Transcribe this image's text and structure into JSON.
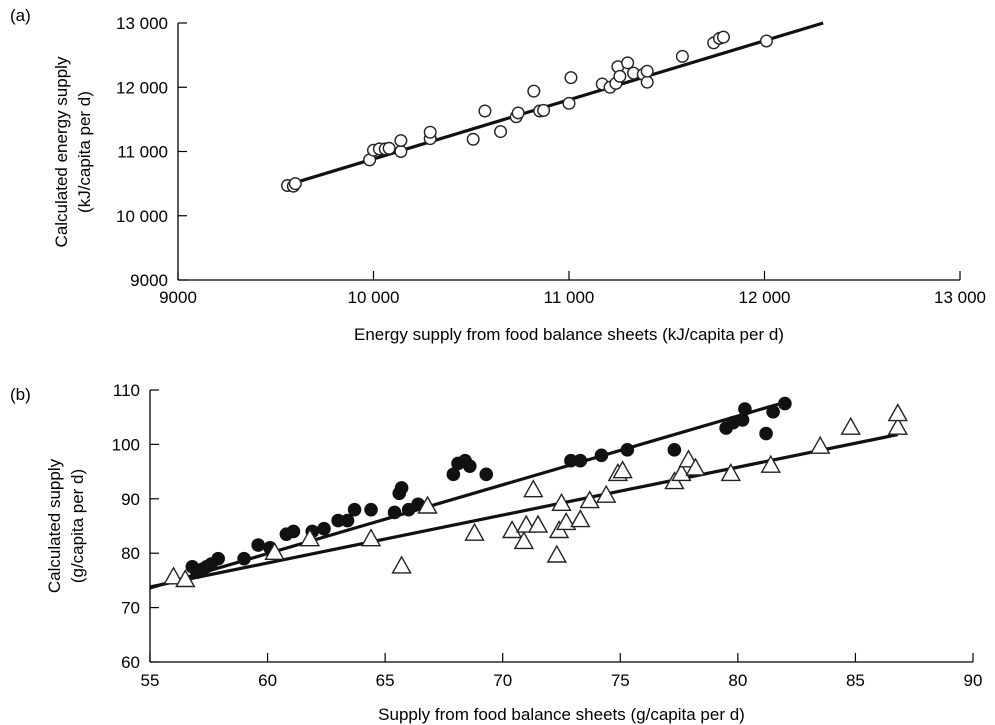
{
  "chart_data": [
    {
      "type": "scatter",
      "panel_label": "(a)",
      "xlabel": "Energy supply from food balance sheets (kJ/capita per d)",
      "ylabel_lines": [
        "Calculated energy supply",
        "(kJ/capita per d)"
      ],
      "xlim": [
        9000,
        13000
      ],
      "ylim": [
        9000,
        13000
      ],
      "x_ticks": [
        9000,
        10000,
        11000,
        12000,
        13000
      ],
      "x_tick_labels": [
        "9000",
        "10 000",
        "11 000",
        "12 000",
        "13 000"
      ],
      "y_ticks": [
        9000,
        10000,
        11000,
        12000,
        13000
      ],
      "y_tick_labels": [
        "9000",
        "10 000",
        "11 000",
        "12 000",
        "13 000"
      ],
      "grid": false,
      "series": [
        {
          "marker": "open-circle",
          "points": [
            [
              9560,
              10470
            ],
            [
              9590,
              10460
            ],
            [
              9600,
              10500
            ],
            [
              9980,
              10870
            ],
            [
              10000,
              11020
            ],
            [
              10030,
              11040
            ],
            [
              10060,
              11040
            ],
            [
              10080,
              11050
            ],
            [
              10140,
              11000
            ],
            [
              10140,
              11170
            ],
            [
              10290,
              11200
            ],
            [
              10290,
              11300
            ],
            [
              10510,
              11190
            ],
            [
              10570,
              11630
            ],
            [
              10650,
              11310
            ],
            [
              10730,
              11540
            ],
            [
              10740,
              11600
            ],
            [
              10820,
              11940
            ],
            [
              10850,
              11630
            ],
            [
              10870,
              11640
            ],
            [
              11000,
              11750
            ],
            [
              11010,
              12150
            ],
            [
              11170,
              12050
            ],
            [
              11210,
              12000
            ],
            [
              11240,
              12060
            ],
            [
              11250,
              12320
            ],
            [
              11260,
              12170
            ],
            [
              11300,
              12380
            ],
            [
              11330,
              12220
            ],
            [
              11380,
              12200
            ],
            [
              11400,
              12080
            ],
            [
              11400,
              12250
            ],
            [
              11580,
              12480
            ],
            [
              11740,
              12690
            ],
            [
              11770,
              12760
            ],
            [
              11790,
              12780
            ],
            [
              12010,
              12720
            ]
          ]
        }
      ],
      "fit_lines": [
        {
          "x": [
            9560,
            12300
          ],
          "y": [
            10480,
            13000
          ]
        }
      ]
    },
    {
      "type": "scatter",
      "panel_label": "(b)",
      "xlabel": "Supply from food balance sheets (g/capita per d)",
      "ylabel_lines": [
        "Calculated supply",
        "(g/capita per d)"
      ],
      "xlim": [
        55,
        90
      ],
      "ylim": [
        60,
        110
      ],
      "x_ticks": [
        55,
        60,
        65,
        70,
        75,
        80,
        85,
        90
      ],
      "x_tick_labels": [
        "55",
        "60",
        "65",
        "70",
        "75",
        "80",
        "85",
        "90"
      ],
      "y_ticks": [
        60,
        70,
        80,
        90,
        100,
        110
      ],
      "y_tick_labels": [
        "60",
        "70",
        "80",
        "90",
        "100",
        "110"
      ],
      "grid": false,
      "series": [
        {
          "marker": "filled-circle",
          "points": [
            [
              56.8,
              77.5
            ],
            [
              57.0,
              76.5
            ],
            [
              57.2,
              77.0
            ],
            [
              57.4,
              77.5
            ],
            [
              57.6,
              78.0
            ],
            [
              57.9,
              79.0
            ],
            [
              59.0,
              79.0
            ],
            [
              59.6,
              81.5
            ],
            [
              60.1,
              81.0
            ],
            [
              60.8,
              83.5
            ],
            [
              61.1,
              84.0
            ],
            [
              61.9,
              84.0
            ],
            [
              62.4,
              84.5
            ],
            [
              63.0,
              86.0
            ],
            [
              63.4,
              86.0
            ],
            [
              63.7,
              88.0
            ],
            [
              64.4,
              88.0
            ],
            [
              65.4,
              87.5
            ],
            [
              65.6,
              91.0
            ],
            [
              65.7,
              92.0
            ],
            [
              66.0,
              88.0
            ],
            [
              66.4,
              89.0
            ],
            [
              67.9,
              94.5
            ],
            [
              68.1,
              96.5
            ],
            [
              68.4,
              97.0
            ],
            [
              68.6,
              96.0
            ],
            [
              69.3,
              94.5
            ],
            [
              72.9,
              97.0
            ],
            [
              73.3,
              97.0
            ],
            [
              74.2,
              98.0
            ],
            [
              75.3,
              99.0
            ],
            [
              77.3,
              99.0
            ],
            [
              79.5,
              103.0
            ],
            [
              79.8,
              104.0
            ],
            [
              80.2,
              104.5
            ],
            [
              80.3,
              106.5
            ],
            [
              81.2,
              102.0
            ],
            [
              81.5,
              106.0
            ],
            [
              82.0,
              107.5
            ]
          ]
        },
        {
          "marker": "open-triangle",
          "points": [
            [
              56.0,
              75.5
            ],
            [
              56.5,
              75.0
            ],
            [
              60.3,
              80.0
            ],
            [
              61.8,
              82.5
            ],
            [
              64.4,
              82.5
            ],
            [
              65.7,
              77.5
            ],
            [
              66.8,
              88.5
            ],
            [
              68.8,
              83.5
            ],
            [
              70.4,
              84.0
            ],
            [
              70.9,
              82.0
            ],
            [
              71.0,
              85.0
            ],
            [
              71.3,
              91.5
            ],
            [
              71.5,
              85.0
            ],
            [
              72.3,
              79.5
            ],
            [
              72.4,
              84.0
            ],
            [
              72.5,
              89.0
            ],
            [
              72.7,
              85.5
            ],
            [
              73.3,
              86.0
            ],
            [
              73.7,
              89.5
            ],
            [
              74.4,
              90.5
            ],
            [
              74.9,
              94.5
            ],
            [
              75.1,
              95.0
            ],
            [
              77.3,
              93.0
            ],
            [
              77.6,
              94.5
            ],
            [
              77.9,
              97.0
            ],
            [
              78.2,
              95.5
            ],
            [
              79.7,
              94.5
            ],
            [
              81.4,
              96.0
            ],
            [
              83.5,
              99.5
            ],
            [
              84.8,
              103.0
            ],
            [
              86.8,
              103.0
            ],
            [
              86.8,
              105.5
            ]
          ]
        }
      ],
      "fit_lines": [
        {
          "x": [
            55,
            81.8
          ],
          "y": [
            73.6,
            107.5
          ]
        },
        {
          "x": [
            55,
            86.8
          ],
          "y": [
            73.8,
            101.8
          ]
        }
      ]
    }
  ]
}
